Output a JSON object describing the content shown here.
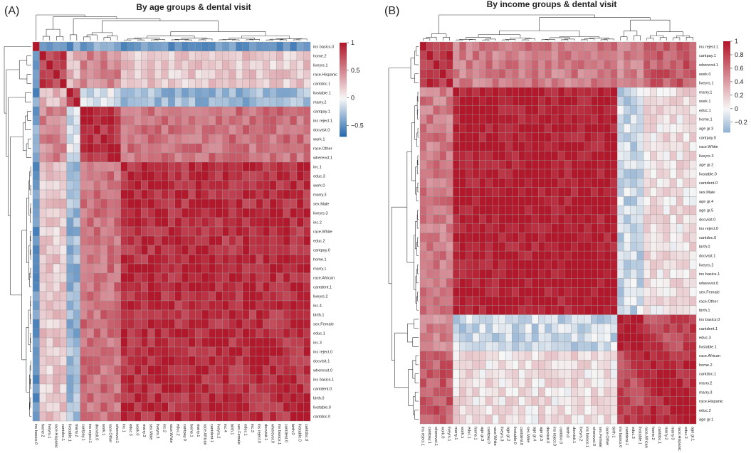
{
  "figure": {
    "panels": [
      {
        "panel_label": "(A)",
        "title": "By age groups & dental visit"
      },
      {
        "panel_label": "(B)",
        "title": "By income groups & dental visit"
      }
    ]
  },
  "chart_data": [
    {
      "type": "heatmap",
      "panel": "A",
      "title": "By age groups & dental visit",
      "row_labels": [
        "ins basics.0",
        "home.2",
        "liveyrs.1",
        "race.Hispanic",
        "cantdoc.1",
        "livstable.1",
        "marry.2",
        "cantpay.1",
        "ins reject.1",
        "docvisit.0",
        "work.1",
        "race.Other",
        "wherevst.1",
        "inc.1",
        "educ.3",
        "work.0",
        "marry.3",
        "sex.Male",
        "liveyrs.3",
        "inc.2",
        "race.White",
        "educ.2",
        "cantpay.0",
        "home.1",
        "marry.1",
        "race.African",
        "cantdent.1",
        "liveyrs.2",
        "inc.4",
        "birth.1",
        "sex.Female",
        "educ.1",
        "inc.3",
        "ins reject.0",
        "docvisit.1",
        "wherevst.0",
        "ins basics.1",
        "cantdent.0",
        "birth.0",
        "livstable.0",
        "cantdoc.0"
      ],
      "col_labels": [
        "ins basics.0",
        "home.2",
        "liveyrs.1",
        "race.Hispanic",
        "cantdoc.1",
        "livstable.1",
        "marry.2",
        "cantpay.1",
        "ins reject.1",
        "docvisit.0",
        "work.1",
        "race.Other",
        "wherevst.1",
        "inc.1",
        "educ.3",
        "work.0",
        "marry.3",
        "sex.Male",
        "liveyrs.3",
        "inc.2",
        "race.White",
        "educ.2",
        "cantpay.0",
        "home.1",
        "marry.1",
        "race.African",
        "cantdent.1",
        "liveyrs.2",
        "inc.4",
        "birth.1",
        "sex.Female",
        "educ.1",
        "inc.3",
        "ins reject.0",
        "docvisit.1",
        "wherevst.0",
        "ins basics.1",
        "cantdent.0",
        "birth.0",
        "livstable.0",
        "cantdoc.0"
      ],
      "clusters": [
        {
          "name": "group-1",
          "start": 0,
          "end": 0
        },
        {
          "name": "group-2",
          "start": 1,
          "end": 4
        },
        {
          "name": "group-3",
          "start": 5,
          "end": 6
        },
        {
          "name": "group-4",
          "start": 7,
          "end": 12
        },
        {
          "name": "group-5",
          "start": 13,
          "end": 40
        }
      ],
      "block_values": [
        [
          1.0,
          -0.35,
          -0.45,
          -0.4,
          -0.5
        ],
        [
          -0.35,
          0.85,
          0.3,
          0.5,
          0.2
        ],
        [
          -0.45,
          0.3,
          0.9,
          -0.1,
          -0.3
        ],
        [
          -0.4,
          0.5,
          -0.1,
          0.9,
          0.6
        ],
        [
          -0.5,
          0.2,
          -0.3,
          0.6,
          0.9
        ]
      ],
      "legend": {
        "ticks": [
          1,
          0.5,
          0,
          -0.5
        ],
        "range": [
          -0.7,
          1.0
        ]
      },
      "row_dendrogram": true,
      "col_dendrogram": true
    },
    {
      "type": "heatmap",
      "panel": "B",
      "title": "By income groups & dental visit",
      "row_labels": [
        "ins reject.1",
        "cantpay.1",
        "wherevst.1",
        "work.0",
        "liveyrs.1",
        "marry.1",
        "work.1",
        "educ.1",
        "home.1",
        "age gr.3",
        "cantpay.0",
        "race.White",
        "liveyrs.3",
        "age gr.2",
        "livstable.0",
        "cantdent.0",
        "sex.Male",
        "age gr.4",
        "age gr.5",
        "docvisit.0",
        "ins reject.0",
        "cantdoc.0",
        "birth.0",
        "docvisit.1",
        "liveyrs.2",
        "ins basics.1",
        "wherevst.0",
        "sex.Female",
        "race.Other",
        "birth.1",
        "ins basics.0",
        "cantdent.1",
        "educ.3",
        "livstable.1",
        "race.African",
        "home.2",
        "cantdoc.1",
        "marry.2",
        "marry.3",
        "race.Hispanic",
        "educ.2",
        "age gr.1"
      ],
      "col_labels": [
        "ins reject.1",
        "cantpay.1",
        "wherevst.1",
        "work.0",
        "liveyrs.1",
        "marry.1",
        "work.1",
        "educ.1",
        "home.1",
        "age gr.3",
        "cantpay.0",
        "race.White",
        "liveyrs.3",
        "age gr.2",
        "livstable.0",
        "cantdent.0",
        "sex.Male",
        "age gr.4",
        "age gr.5",
        "docvisit.0",
        "ins reject.0",
        "cantdoc.0",
        "birth.0",
        "docvisit.1",
        "liveyrs.2",
        "ins basics.1",
        "wherevst.0",
        "sex.Female",
        "race.Other",
        "birth.1",
        "ins basics.0",
        "cantdent.1",
        "educ.3",
        "livstable.1",
        "race.African",
        "home.2",
        "cantdoc.1",
        "marry.2",
        "marry.3",
        "race.Hispanic",
        "educ.2",
        "age gr.1"
      ],
      "clusters": [
        {
          "name": "group-1",
          "start": 0,
          "end": 4
        },
        {
          "name": "group-2",
          "start": 5,
          "end": 29
        },
        {
          "name": "group-3",
          "start": 30,
          "end": 33
        },
        {
          "name": "group-4",
          "start": 34,
          "end": 41
        }
      ],
      "block_values": [
        [
          0.9,
          0.55,
          0.5,
          0.7
        ],
        [
          0.55,
          1.0,
          -0.15,
          0.1
        ],
        [
          0.5,
          -0.15,
          1.0,
          0.8
        ],
        [
          0.7,
          0.1,
          0.8,
          0.95
        ]
      ],
      "legend": {
        "ticks": [
          1,
          0.8,
          0.6,
          0.4,
          0.2,
          0,
          -0.2
        ],
        "range": [
          -0.35,
          1.0
        ]
      },
      "row_dendrogram": true,
      "col_dendrogram": true
    }
  ]
}
